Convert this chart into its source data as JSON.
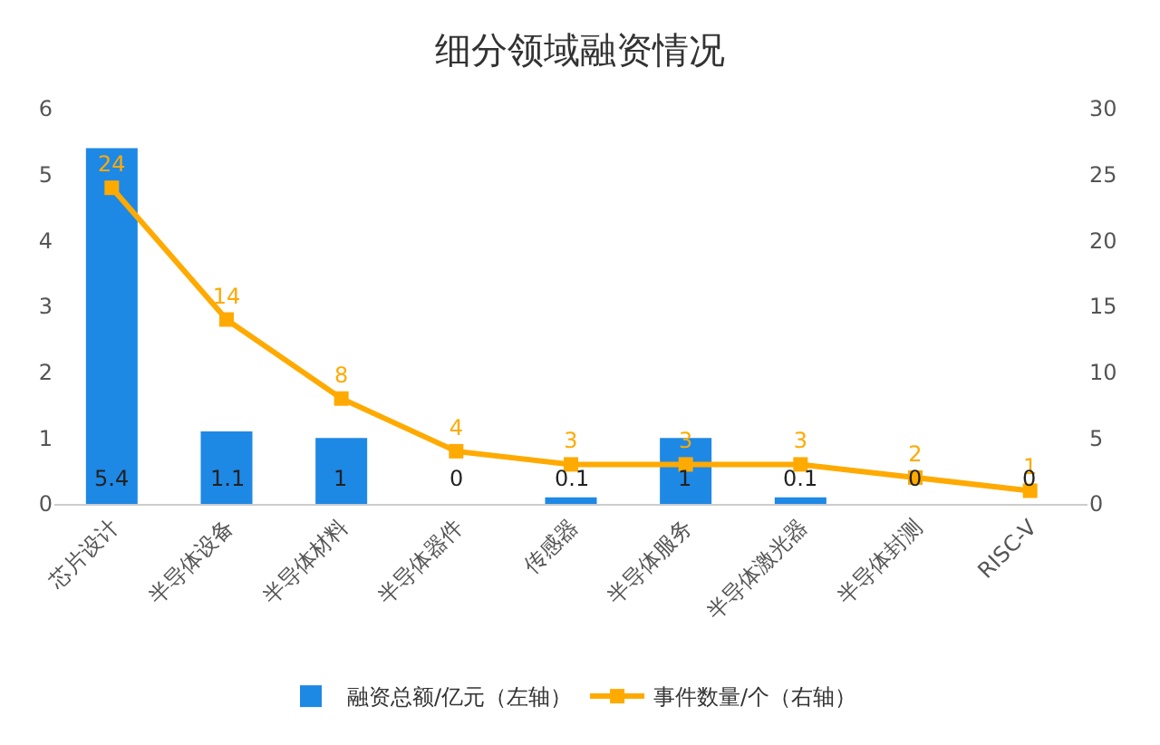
{
  "chart_data": {
    "type": "bar",
    "title": "细分领域融资情况",
    "categories": [
      "芯片设计",
      "半导体设备",
      "半导体材料",
      "半导体器件",
      "传感器",
      "半导体服务",
      "半导体激光器",
      "半导体封测",
      "RISC-V"
    ],
    "series": [
      {
        "name": "融资总额/亿元（左轴）",
        "color": "#1e88e5",
        "values": [
          5.4,
          1.1,
          1,
          0,
          0.1,
          1,
          0.1,
          0,
          0
        ]
      },
      {
        "name": "事件数量/个（右轴）",
        "type": "line",
        "axis": "y2",
        "color": "#ffaa00",
        "marker": "square",
        "values": [
          24,
          14,
          8,
          4,
          3,
          3,
          3,
          2,
          1
        ]
      }
    ],
    "ylim": [
      0,
      6
    ],
    "yticks": [
      0,
      1,
      2,
      3,
      4,
      5,
      6
    ],
    "y2lim": [
      0,
      30
    ],
    "y2ticks": [
      0,
      5,
      10,
      15,
      20,
      25,
      30
    ],
    "data_labels": true,
    "grid": false,
    "legend": "bottom"
  }
}
